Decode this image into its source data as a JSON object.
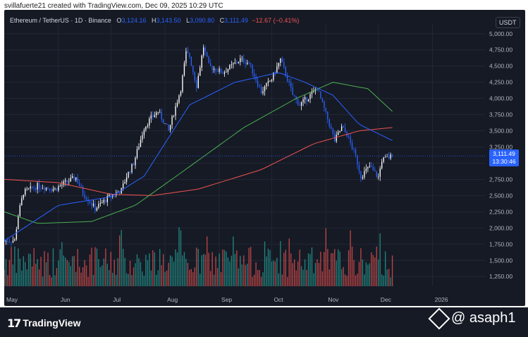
{
  "header": {
    "credit": "svillafuerte21 created with TradingView.com, Dec 09, 2025 10:29 UTC"
  },
  "legend": {
    "symbol": "Ethereum / TetherUS · 1D · Binance",
    "o_label": "O",
    "o_value": "3,124.16",
    "h_label": "H",
    "h_value": "3,143.50",
    "l_label": "L",
    "l_value": "3,090.80",
    "c_label": "C",
    "c_value": "3,111.49",
    "change": "−12.67 (−0.41%)"
  },
  "currency_button": "USDT",
  "price_tag": {
    "price": "3,111.49",
    "countdown": "13:30:46"
  },
  "footer": {
    "brand": "TradingView",
    "watermark": "@ asaph1"
  },
  "colors": {
    "background": "#161a25",
    "up": "#ffffff",
    "down": "#2962ff",
    "vol_up": "#26a69a",
    "vol_down": "#ef5350",
    "ma_short": "#2962ff",
    "ma_mid": "#4caf50",
    "ma_long": "#ef5350"
  },
  "chart_data": {
    "type": "candlestick",
    "title": "Ethereum / TetherUS · 1D · Binance",
    "y_ticks": [
      "5,000.00",
      "4,750.00",
      "4,500.00",
      "4,250.00",
      "4,000.00",
      "3,750.00",
      "3,500.00",
      "3,250.00",
      "3,000.00",
      "2,750.00",
      "2,500.00",
      "2,250.00",
      "2,000.00",
      "1,750.00",
      "1,500.00",
      "1,250.00"
    ],
    "ylim": [
      1100,
      5150
    ],
    "x_ticks": [
      "May",
      "Jun",
      "Jul",
      "Aug",
      "Sep",
      "Oct",
      "Nov",
      "Dec",
      "2026"
    ],
    "x_tick_dates": [
      "2025-05-01",
      "2025-06-01",
      "2025-07-01",
      "2025-08-01",
      "2025-09-01",
      "2025-10-01",
      "2025-11-01",
      "2025-12-01",
      "2026-01-01"
    ],
    "xlim": [
      "2025-05-01",
      "2026-01-31"
    ],
    "price_path": {
      "dates": [
        "2025-05-01",
        "2025-05-07",
        "2025-05-09",
        "2025-05-12",
        "2025-05-20",
        "2025-05-30",
        "2025-06-05",
        "2025-06-11",
        "2025-06-15",
        "2025-06-22",
        "2025-06-30",
        "2025-07-07",
        "2025-07-10",
        "2025-07-14",
        "2025-07-20",
        "2025-07-24",
        "2025-07-28",
        "2025-08-03",
        "2025-08-10",
        "2025-08-13",
        "2025-08-15",
        "2025-08-19",
        "2025-08-23",
        "2025-08-26",
        "2025-09-03",
        "2025-09-13",
        "2025-09-18",
        "2025-09-25",
        "2025-10-01",
        "2025-10-06",
        "2025-10-10",
        "2025-10-13",
        "2025-10-17",
        "2025-10-27",
        "2025-11-03",
        "2025-11-06",
        "2025-11-10",
        "2025-11-13",
        "2025-11-18",
        "2025-11-21",
        "2025-11-26",
        "2025-12-01",
        "2025-12-03",
        "2025-12-09"
      ],
      "closes": [
        1800,
        1810,
        2200,
        2550,
        2650,
        2600,
        2700,
        2780,
        2540,
        2300,
        2480,
        2580,
        2800,
        3000,
        3550,
        3700,
        3800,
        3500,
        4150,
        4700,
        4650,
        4200,
        4800,
        4500,
        4400,
        4600,
        4550,
        4100,
        4300,
        4600,
        4300,
        4050,
        3900,
        4150,
        3600,
        3350,
        3550,
        3450,
        3100,
        2800,
        2950,
        2780,
        3050,
        3111.49
      ]
    },
    "last": {
      "open": 3124.16,
      "high": 3143.5,
      "low": 3090.8,
      "close": 3111.49,
      "change": -12.67,
      "change_pct": -0.41
    },
    "ma_short": {
      "dates": [
        "2025-05-01",
        "2025-06-01",
        "2025-07-01",
        "2025-07-20",
        "2025-08-15",
        "2025-09-10",
        "2025-10-05",
        "2025-10-20",
        "2025-11-05",
        "2025-11-20",
        "2025-12-09"
      ],
      "values": [
        1800,
        2350,
        2480,
        2800,
        3900,
        4250,
        4400,
        4250,
        4050,
        3600,
        3350
      ]
    },
    "ma_mid": {
      "dates": [
        "2025-05-01",
        "2025-05-20",
        "2025-06-20",
        "2025-07-15",
        "2025-08-10",
        "2025-09-15",
        "2025-10-15",
        "2025-11-05",
        "2025-11-25",
        "2025-12-09"
      ],
      "values": [
        2250,
        2070,
        2100,
        2350,
        2850,
        3550,
        4000,
        4250,
        4150,
        3800
      ]
    },
    "ma_long": {
      "dates": [
        "2025-05-01",
        "2025-06-01",
        "2025-07-01",
        "2025-07-25",
        "2025-08-20",
        "2025-09-25",
        "2025-10-25",
        "2025-11-20",
        "2025-12-09"
      ],
      "values": [
        2750,
        2700,
        2520,
        2500,
        2600,
        2900,
        3300,
        3500,
        3550
      ]
    },
    "volume_bars": 160,
    "grid": true
  }
}
